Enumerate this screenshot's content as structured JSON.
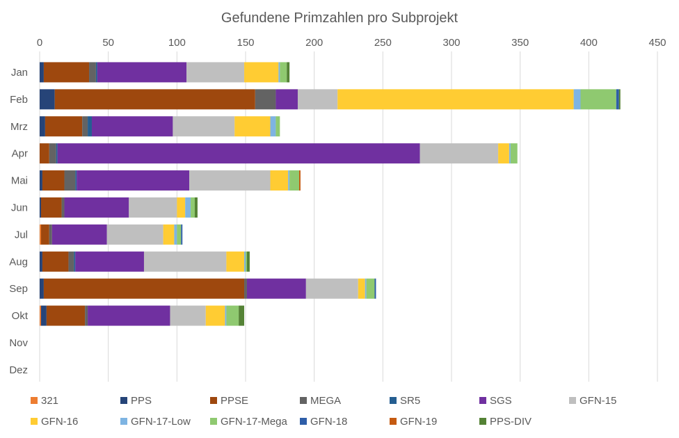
{
  "chart_data": {
    "type": "bar",
    "orientation": "horizontal",
    "stacked": true,
    "title": "Gefundene Primzahlen pro Subprojekt",
    "xlabel": "",
    "ylabel": "",
    "xlim": [
      0,
      450
    ],
    "x_ticks": [
      "0",
      "50",
      "100",
      "150",
      "200",
      "250",
      "300",
      "350",
      "400",
      "450"
    ],
    "x_tick_values": [
      0,
      50,
      100,
      150,
      200,
      250,
      300,
      350,
      400,
      450
    ],
    "x_axis_position": "top",
    "grid": true,
    "legend_position": "bottom",
    "categories": [
      "Jan",
      "Feb",
      "Mrz",
      "Apr",
      "Mai",
      "Jun",
      "Jul",
      "Aug",
      "Sep",
      "Okt",
      "Nov",
      "Dez"
    ],
    "series": [
      {
        "name": "321",
        "color": "#ED7D31",
        "values": [
          0,
          0,
          0,
          0,
          0,
          0,
          1,
          0,
          0,
          1,
          0,
          0
        ]
      },
      {
        "name": "PPS",
        "color": "#264478",
        "values": [
          3,
          11,
          4,
          0,
          2,
          1,
          0,
          2,
          3,
          4,
          0,
          0
        ]
      },
      {
        "name": "PPSE",
        "color": "#9E480E",
        "values": [
          33,
          146,
          27,
          7,
          16,
          15,
          6,
          19,
          146,
          28,
          0,
          0
        ]
      },
      {
        "name": "MEGA",
        "color": "#636363",
        "values": [
          5,
          15,
          4,
          5,
          8,
          2,
          2,
          4,
          2,
          2,
          0,
          0
        ]
      },
      {
        "name": "SR5",
        "color": "#255E91",
        "values": [
          1,
          0,
          3,
          1,
          1,
          0,
          0,
          1,
          0,
          0,
          0,
          0
        ]
      },
      {
        "name": "SGS",
        "color": "#7030A0",
        "values": [
          65,
          16,
          59,
          264,
          82,
          47,
          40,
          50,
          43,
          60,
          0,
          0
        ]
      },
      {
        "name": "GFN-15",
        "color": "#BFBFBF",
        "values": [
          42,
          29,
          45,
          57,
          59,
          35,
          41,
          60,
          38,
          26,
          0,
          0
        ]
      },
      {
        "name": "GFN-16",
        "color": "#FFCC33",
        "values": [
          25,
          172,
          26,
          8,
          13,
          6,
          8,
          13,
          5,
          14,
          0,
          0
        ]
      },
      {
        "name": "GFN-17-Low",
        "color": "#7EB4E2",
        "values": [
          1,
          5,
          4,
          1,
          1,
          4,
          2,
          1,
          1,
          1,
          0,
          0
        ]
      },
      {
        "name": "GFN-17-Mega",
        "color": "#8FC970",
        "values": [
          5,
          26,
          3,
          5,
          7,
          3,
          3,
          1,
          6,
          9,
          0,
          0
        ]
      },
      {
        "name": "GFN-18",
        "color": "#2E5EA8",
        "values": [
          0,
          2,
          0,
          0,
          0,
          0,
          1,
          0,
          1,
          0,
          0,
          0
        ]
      },
      {
        "name": "GFN-19",
        "color": "#C55A11",
        "values": [
          0,
          0,
          0,
          0,
          1,
          0,
          0,
          0,
          0,
          0,
          0,
          0
        ]
      },
      {
        "name": "PPS-DIV",
        "color": "#548235",
        "values": [
          2,
          1,
          0,
          0,
          0,
          2,
          0,
          2,
          0,
          4,
          0,
          0
        ]
      }
    ]
  }
}
